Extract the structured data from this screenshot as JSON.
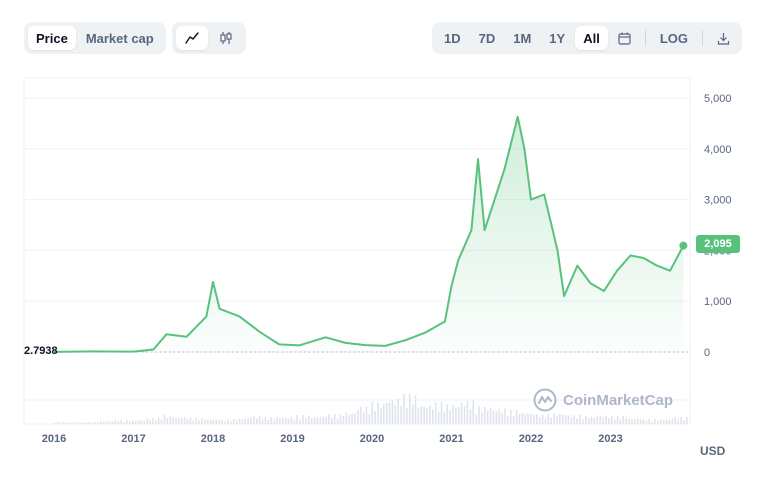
{
  "toolbar": {
    "metric_tabs": [
      {
        "label": "Price",
        "active": true
      },
      {
        "label": "Market cap",
        "active": false
      }
    ],
    "chart_types": [
      {
        "icon": "line-chart-icon",
        "active": true
      },
      {
        "icon": "candlestick-icon",
        "active": false
      }
    ],
    "ranges": [
      {
        "label": "1D",
        "active": false
      },
      {
        "label": "7D",
        "active": false
      },
      {
        "label": "1M",
        "active": false
      },
      {
        "label": "1Y",
        "active": false
      },
      {
        "label": "All",
        "active": true
      }
    ],
    "calendar_icon": "calendar-icon",
    "log_label": "LOG",
    "download_icon": "download-icon"
  },
  "price_tag": "2,095",
  "low_tag": "2.7938",
  "currency": "USD",
  "watermark": "CoinMarketCap",
  "colors": {
    "line": "#58c27d",
    "grid": "#eff2f5"
  },
  "chart_data": {
    "type": "line",
    "x": [
      "2016-01",
      "2016-07",
      "2017-01",
      "2017-04",
      "2017-06",
      "2017-09",
      "2017-12",
      "2018-01",
      "2018-02",
      "2018-05",
      "2018-08",
      "2018-11",
      "2019-02",
      "2019-06",
      "2019-09",
      "2019-12",
      "2020-03",
      "2020-06",
      "2020-09",
      "2020-12",
      "2021-01",
      "2021-02",
      "2021-04",
      "2021-05",
      "2021-06",
      "2021-08",
      "2021-09",
      "2021-11",
      "2021-12",
      "2022-01",
      "2022-03",
      "2022-05",
      "2022-06",
      "2022-08",
      "2022-10",
      "2022-12",
      "2023-02",
      "2023-04",
      "2023-06",
      "2023-08",
      "2023-10",
      "2023-12"
    ],
    "values": [
      2.79,
      12,
      8,
      50,
      350,
      300,
      700,
      1380,
      850,
      700,
      400,
      150,
      130,
      290,
      180,
      135,
      120,
      230,
      380,
      600,
      1300,
      1800,
      2400,
      3800,
      2400,
      3200,
      3600,
      4630,
      4000,
      3000,
      3100,
      2000,
      1100,
      1700,
      1350,
      1200,
      1600,
      1900,
      1850,
      1700,
      1600,
      2095
    ],
    "ylim": [
      0,
      5000
    ],
    "yticks": [
      "5,000",
      "4,000",
      "3,000",
      "2,000",
      "1,000",
      "0"
    ],
    "xticks": [
      "2016",
      "2017",
      "2018",
      "2019",
      "2020",
      "2021",
      "2022",
      "2023"
    ],
    "volume": [
      2,
      2,
      2,
      3,
      4,
      4,
      6,
      9,
      7,
      6,
      5,
      5,
      6,
      8,
      7,
      7,
      9,
      8,
      10,
      12,
      18,
      22,
      26,
      30,
      20,
      22,
      20,
      24,
      18,
      16,
      14,
      12,
      10,
      11,
      9,
      8,
      9,
      8,
      6,
      5,
      5,
      7
    ]
  }
}
